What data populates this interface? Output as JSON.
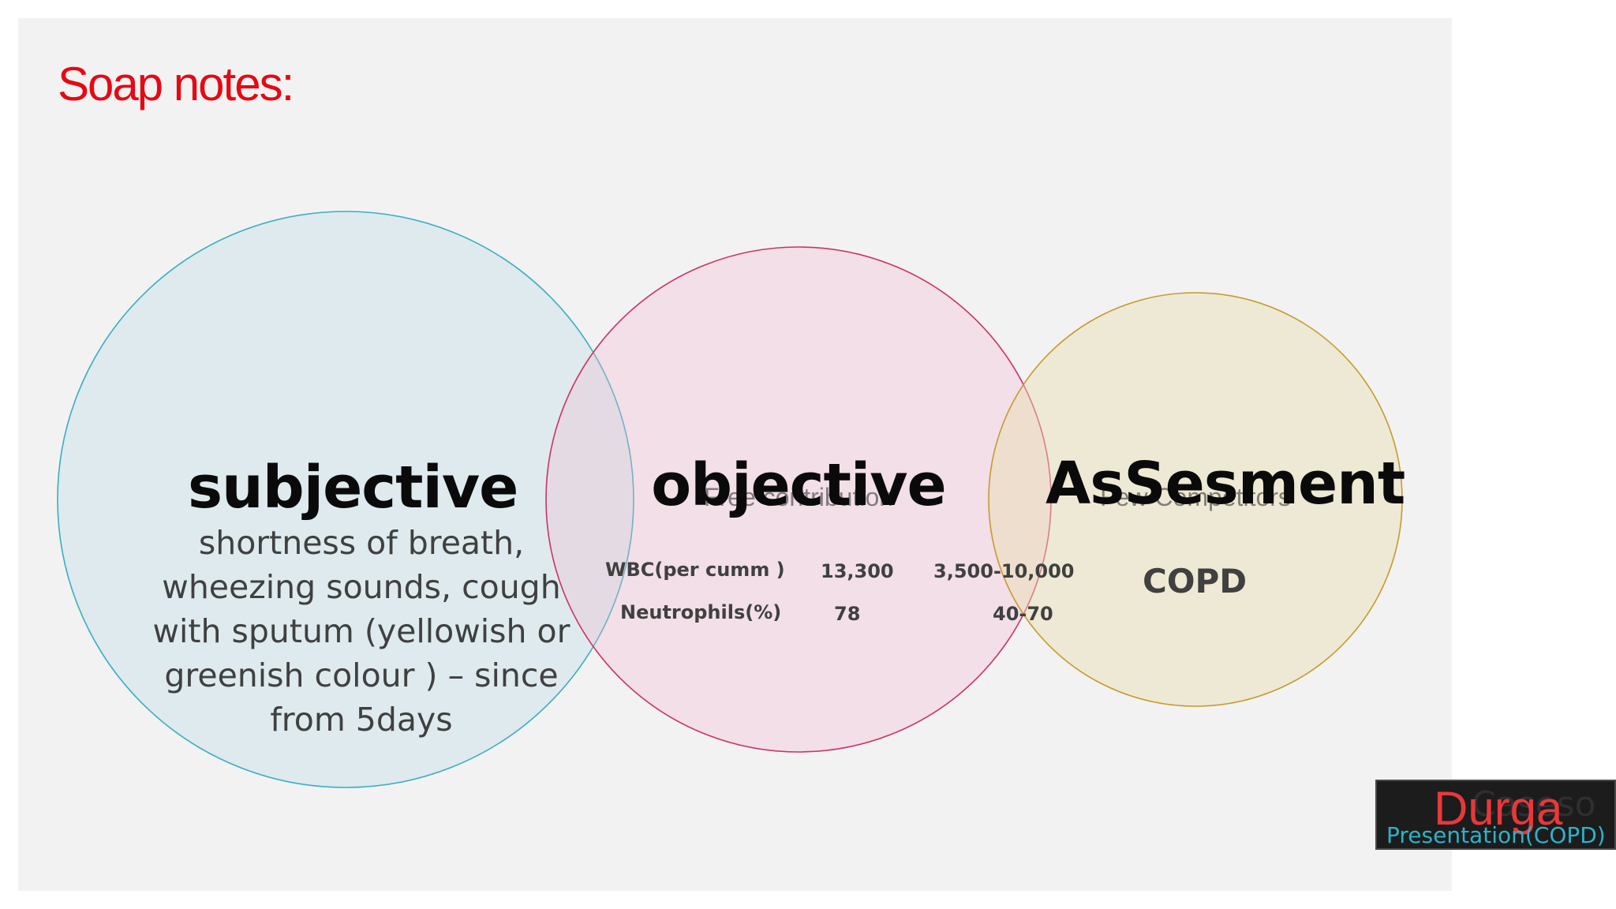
{
  "slide": {
    "title": "Soap notes:"
  },
  "venn": {
    "subjective": {
      "heading": "subjective",
      "lines": [
        "shortness of breath,",
        "wheezing sounds, cough",
        "with sputum (yellowish or",
        "greenish colour ) – since",
        "from 5days"
      ],
      "fill": "#add8e6",
      "stroke": "#3aaec2"
    },
    "objective": {
      "heading": "objective",
      "placeholder": "Free contribution",
      "fill": "#f4b6cf",
      "stroke": "#cc3366",
      "labs": [
        {
          "test": "WBC(per cumm )",
          "value": "13,300",
          "range": "3,500-10,000"
        },
        {
          "test": "Neutrophils(%)",
          "value": "78",
          "range": "40-70"
        }
      ]
    },
    "assessment": {
      "heading": "AsSesment",
      "placeholder": "Few Competitors",
      "diagnosis": "COPD",
      "fill": "#e9ddb0",
      "stroke": "#c69a2e"
    }
  },
  "logo": {
    "ghost_word": "Caseso",
    "name": "Durga",
    "subtitle": "Presentation(COPD)"
  }
}
